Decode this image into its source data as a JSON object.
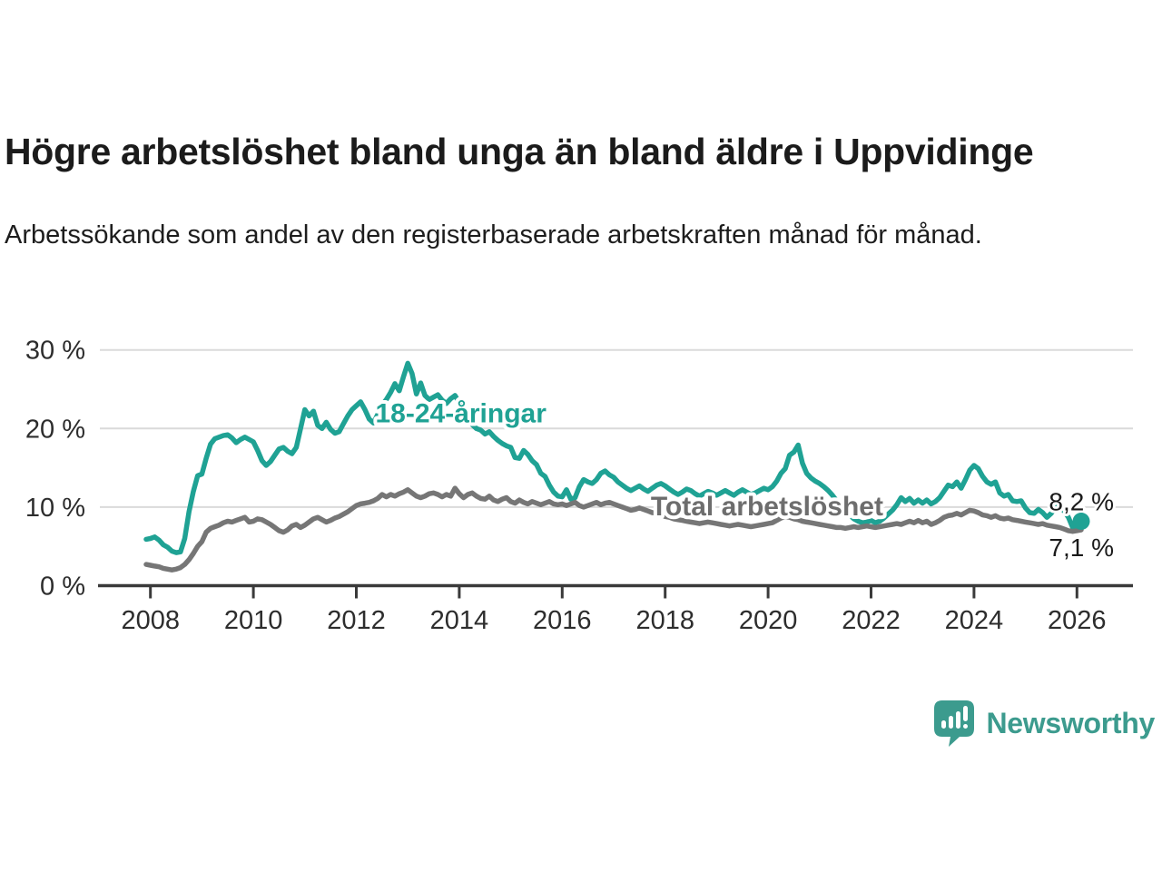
{
  "page": {
    "title": "Högre arbetslöshet bland unga än bland äldre i Uppvidinge",
    "subtitle": "Arbetssökande som andel av den registerbaserade arbetskraften månad för månad.",
    "brand": {
      "name": "Newsworthy",
      "icon": "bar-chart-speech-bubble-icon",
      "color": "#3c9b8e"
    }
  },
  "chart_data": {
    "type": "line",
    "title": "Högre arbetslöshet bland unga än bland äldre i Uppvidinge",
    "subtitle": "Arbetssökande som andel av den registerbaserade arbetskraften månad för månad.",
    "x_start": {
      "year": 2007,
      "month": 12
    },
    "x_end": {
      "year": 2026,
      "month": 2
    },
    "x_ticks": [
      2008,
      2010,
      2012,
      2014,
      2016,
      2018,
      2020,
      2022,
      2024,
      2026
    ],
    "x_tick_labels": [
      "2008",
      "2010",
      "2012",
      "2014",
      "2016",
      "2018",
      "2020",
      "2022",
      "2024",
      "2026"
    ],
    "y_ticks": [
      0,
      10,
      20,
      30
    ],
    "y_tick_labels": [
      "0 %",
      "10 %",
      "20 %",
      "30 %"
    ],
    "ylim": [
      0,
      31
    ],
    "grid": "horizontal-only",
    "legend_position": "inline-labels-on-lines",
    "colors": {
      "young_line": "#1fa294",
      "total_line": "#767676",
      "total_label": "#6d6d6d",
      "grid": "#dadada",
      "axis": "#3a3a3a",
      "tick_text": "#2d2d2d",
      "end_label_text": "#1a1a1a"
    },
    "series": [
      {
        "name": "18-24-åringar",
        "color": "#1fa294",
        "label_color": "#1fa294",
        "end_label": "8,2 %",
        "end_label_side": "above",
        "end_dot": true,
        "label_anchor": {
          "year": 2012.37,
          "value": 20.8
        },
        "values": [
          5.9,
          6.0,
          6.2,
          5.8,
          5.2,
          4.9,
          4.4,
          4.2,
          4.3,
          6.0,
          9.4,
          12.0,
          14.0,
          14.2,
          16.2,
          18.0,
          18.7,
          18.9,
          19.1,
          19.2,
          18.8,
          18.2,
          18.6,
          18.9,
          18.6,
          18.3,
          17.2,
          15.9,
          15.3,
          15.8,
          16.6,
          17.4,
          17.6,
          17.1,
          16.8,
          17.6,
          20.0,
          22.4,
          21.6,
          22.2,
          20.4,
          20.0,
          20.8,
          19.9,
          19.4,
          19.6,
          20.6,
          21.6,
          22.4,
          22.9,
          23.4,
          22.4,
          21.2,
          20.7,
          21.8,
          23.0,
          23.7,
          24.6,
          25.7,
          24.8,
          26.6,
          28.3,
          27.0,
          24.4,
          25.8,
          24.2,
          23.7,
          24.0,
          24.3,
          23.6,
          23.2,
          23.8,
          24.2,
          23.3,
          22.5,
          21.7,
          20.5,
          20.0,
          19.8,
          19.3,
          19.6,
          19.0,
          18.5,
          18.1,
          17.8,
          17.6,
          16.3,
          16.2,
          17.2,
          16.7,
          15.9,
          15.4,
          14.3,
          13.9,
          12.8,
          11.9,
          11.4,
          11.3,
          12.2,
          11.0,
          11.2,
          12.6,
          13.5,
          13.2,
          13.0,
          13.5,
          14.3,
          14.6,
          14.1,
          13.8,
          13.2,
          12.8,
          12.4,
          12.1,
          12.4,
          12.7,
          12.3,
          12.0,
          12.4,
          12.8,
          13.0,
          12.7,
          12.3,
          11.9,
          11.6,
          11.9,
          12.3,
          12.1,
          11.7,
          11.4,
          11.7,
          12.0,
          11.8,
          11.5,
          11.8,
          12.1,
          11.8,
          11.5,
          11.9,
          12.2,
          11.9,
          11.6,
          11.8,
          12.1,
          12.4,
          12.2,
          12.6,
          13.3,
          14.3,
          14.9,
          16.6,
          17.0,
          17.9,
          15.6,
          14.3,
          13.7,
          13.3,
          13.0,
          12.6,
          12.1,
          11.5,
          10.8,
          10.2,
          9.6,
          9.0,
          8.5,
          8.2,
          8.0,
          8.1,
          8.3,
          8.0,
          8.2,
          8.6,
          9.1,
          9.6,
          10.3,
          11.2,
          10.7,
          11.1,
          10.5,
          10.9,
          10.5,
          10.9,
          10.4,
          10.7,
          11.2,
          12.0,
          12.8,
          12.6,
          13.2,
          12.4,
          13.5,
          14.7,
          15.3,
          14.9,
          13.9,
          13.2,
          12.9,
          13.2,
          11.8,
          11.4,
          11.6,
          10.8,
          10.7,
          10.8,
          9.9,
          9.3,
          9.2,
          9.7,
          9.3,
          8.7,
          9.2,
          9.9,
          10.1,
          9.5,
          8.7,
          7.4,
          7.2,
          8.2
        ]
      },
      {
        "name": "Total arbetslöshet",
        "color": "#767676",
        "label_color": "#6d6d6d",
        "end_label": "7,1 %",
        "end_label_side": "below",
        "end_dot": false,
        "label_anchor": {
          "year": 2017.72,
          "value": 8.95
        },
        "values": [
          2.7,
          2.6,
          2.5,
          2.4,
          2.2,
          2.1,
          2.0,
          2.1,
          2.3,
          2.7,
          3.3,
          4.1,
          5.0,
          5.6,
          6.8,
          7.3,
          7.5,
          7.7,
          8.0,
          8.2,
          8.1,
          8.3,
          8.5,
          8.7,
          8.1,
          8.2,
          8.5,
          8.4,
          8.1,
          7.8,
          7.4,
          7.0,
          6.8,
          7.1,
          7.6,
          7.8,
          7.4,
          7.7,
          8.1,
          8.5,
          8.7,
          8.4,
          8.1,
          8.3,
          8.6,
          8.8,
          9.1,
          9.4,
          9.8,
          10.2,
          10.4,
          10.5,
          10.6,
          10.8,
          11.1,
          11.6,
          11.3,
          11.6,
          11.4,
          11.7,
          11.9,
          12.2,
          11.8,
          11.4,
          11.2,
          11.4,
          11.7,
          11.8,
          11.6,
          11.3,
          11.6,
          11.4,
          12.4,
          11.7,
          11.2,
          11.6,
          11.8,
          11.4,
          11.1,
          11.0,
          11.4,
          10.9,
          10.7,
          11.0,
          11.2,
          10.7,
          10.5,
          10.9,
          10.6,
          10.4,
          10.7,
          10.5,
          10.3,
          10.5,
          10.7,
          10.4,
          10.3,
          10.4,
          10.2,
          10.4,
          10.6,
          10.2,
          10.0,
          10.2,
          10.4,
          10.6,
          10.3,
          10.5,
          10.6,
          10.4,
          10.2,
          10.0,
          9.8,
          9.6,
          9.7,
          9.9,
          9.7,
          9.5,
          9.3,
          9.2,
          9.0,
          8.8,
          8.7,
          8.5,
          8.4,
          8.3,
          8.2,
          8.1,
          8.0,
          7.9,
          8.0,
          8.1,
          8.0,
          7.9,
          7.8,
          7.7,
          7.6,
          7.7,
          7.8,
          7.7,
          7.6,
          7.5,
          7.6,
          7.7,
          7.8,
          7.9,
          8.0,
          8.3,
          8.6,
          8.8,
          8.7,
          8.5,
          8.4,
          8.2,
          8.1,
          8.0,
          7.9,
          7.8,
          7.7,
          7.6,
          7.5,
          7.4,
          7.4,
          7.3,
          7.4,
          7.5,
          7.4,
          7.5,
          7.6,
          7.5,
          7.4,
          7.5,
          7.6,
          7.7,
          7.8,
          7.9,
          7.8,
          8.0,
          8.2,
          8.0,
          8.3,
          8.0,
          8.2,
          7.8,
          8.0,
          8.3,
          8.7,
          8.9,
          9.0,
          9.2,
          9.0,
          9.3,
          9.6,
          9.5,
          9.3,
          9.0,
          8.9,
          8.7,
          8.9,
          8.6,
          8.5,
          8.6,
          8.4,
          8.3,
          8.2,
          8.1,
          8.0,
          7.9,
          7.8,
          7.9,
          7.7,
          7.6,
          7.5,
          7.4,
          7.2,
          7.0,
          6.9,
          7.0,
          7.1
        ]
      }
    ]
  }
}
